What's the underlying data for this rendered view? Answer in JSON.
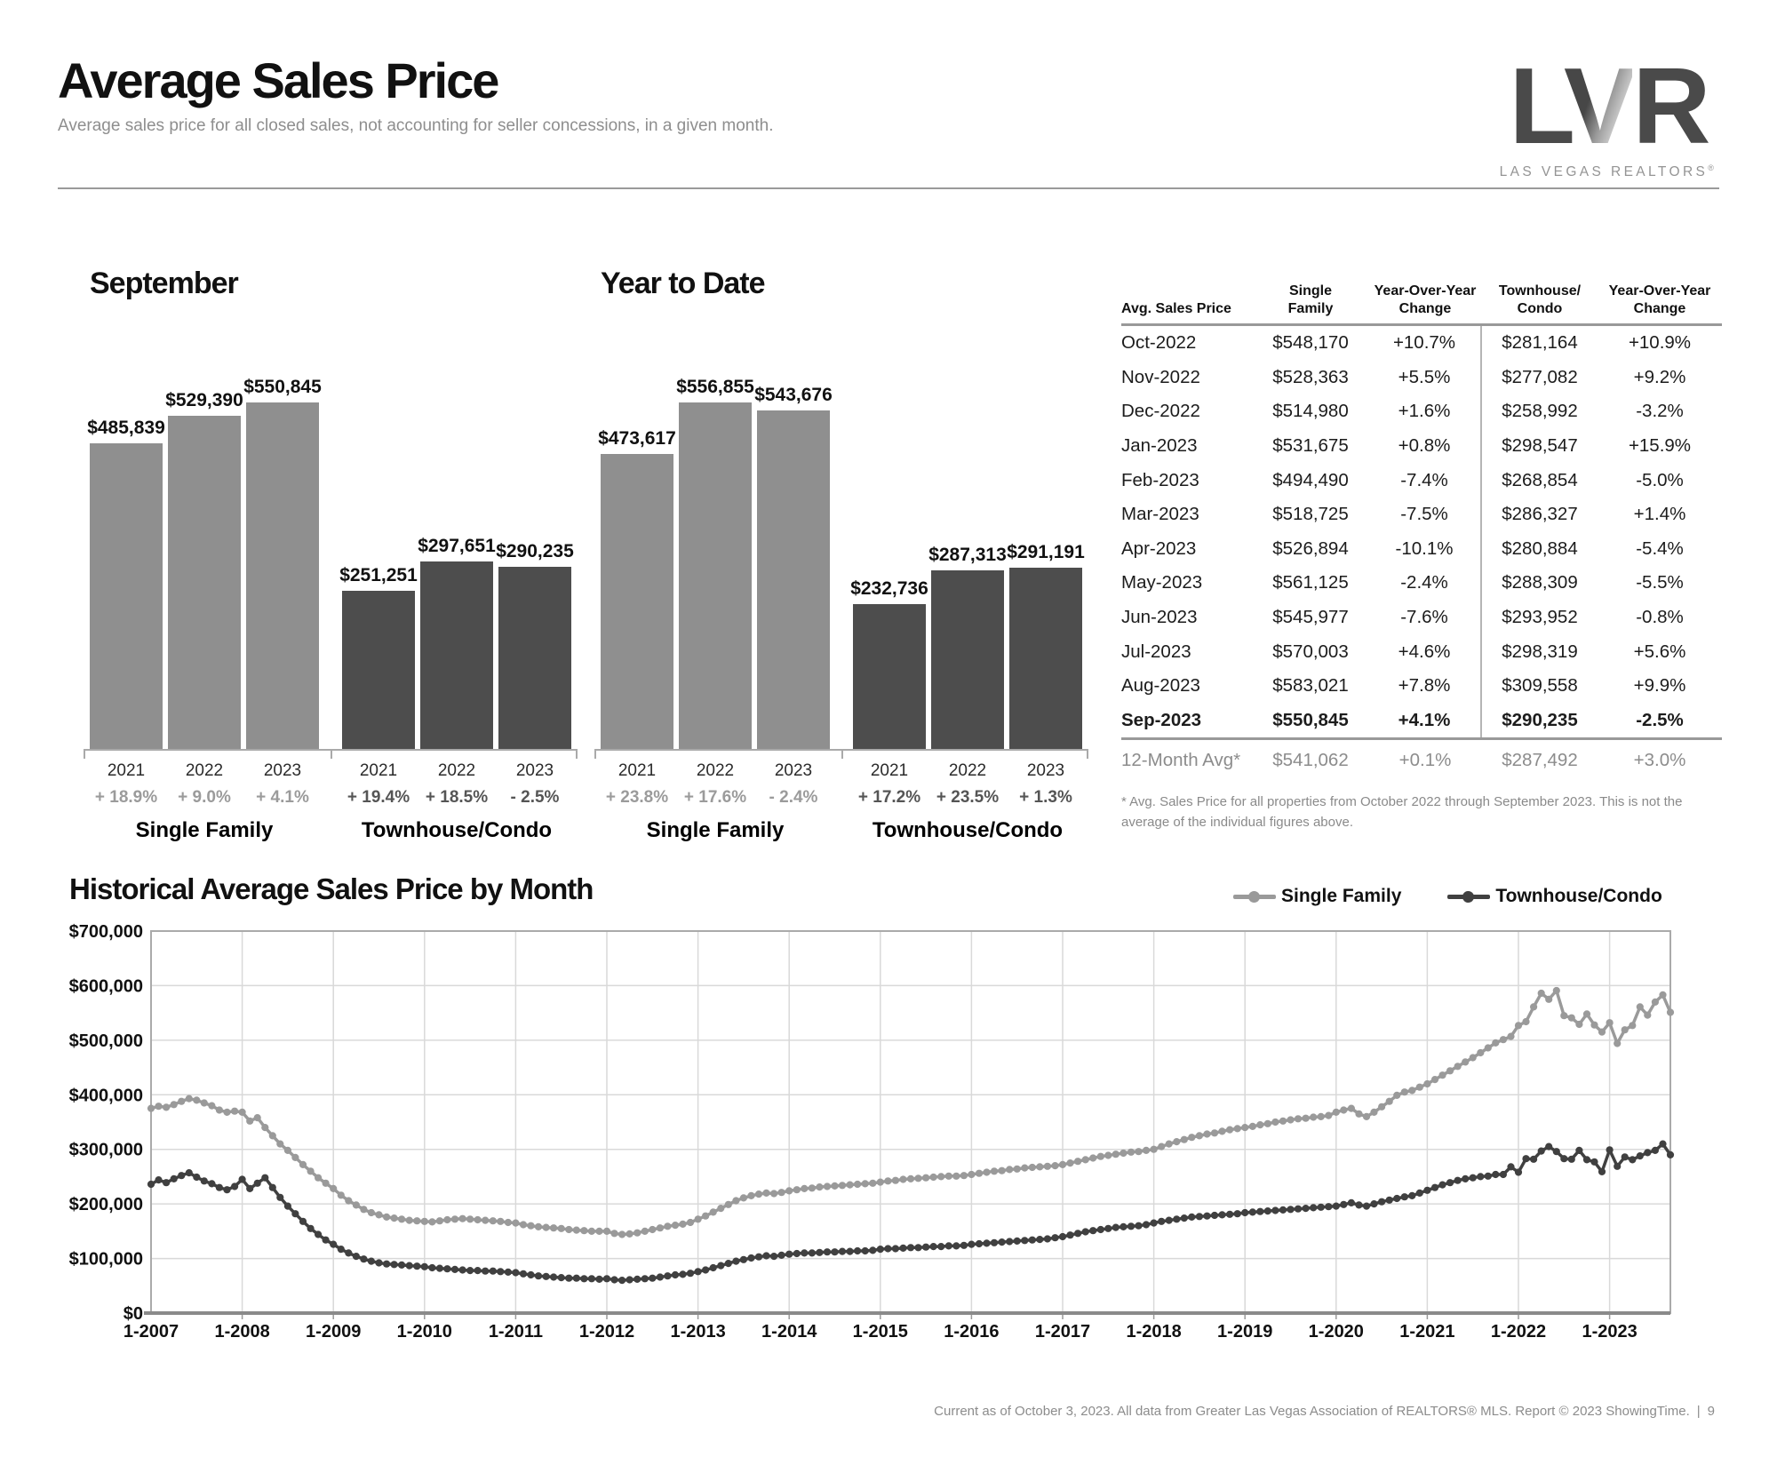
{
  "header": {
    "title": "Average Sales Price",
    "subtitle": "Average sales price for all closed sales, not accounting for seller concessions, in a given month.",
    "logo": {
      "text": "LVR",
      "subtext": "LAS VEGAS REALTORS",
      "reg": "®"
    }
  },
  "chart_data": [
    {
      "type": "bar",
      "title": "September",
      "ylim": [
        0,
        560000
      ],
      "groups": [
        {
          "label": "Single Family",
          "bars": [
            {
              "year": "2021",
              "value": 485839,
              "value_label": "$485,839",
              "change": "+ 18.9%"
            },
            {
              "year": "2022",
              "value": 529390,
              "value_label": "$529,390",
              "change": "+ 9.0%"
            },
            {
              "year": "2023",
              "value": 550845,
              "value_label": "$550,845",
              "change": "+ 4.1%"
            }
          ]
        },
        {
          "label": "Townhouse/Condo",
          "bars": [
            {
              "year": "2021",
              "value": 251251,
              "value_label": "$251,251",
              "change": "+ 19.4%"
            },
            {
              "year": "2022",
              "value": 297651,
              "value_label": "$297,651",
              "change": "+ 18.5%"
            },
            {
              "year": "2023",
              "value": 290235,
              "value_label": "$290,235",
              "change": "- 2.5%"
            }
          ]
        }
      ]
    },
    {
      "type": "bar",
      "title": "Year to Date",
      "ylim": [
        0,
        560000
      ],
      "groups": [
        {
          "label": "Single Family",
          "bars": [
            {
              "year": "2021",
              "value": 473617,
              "value_label": "$473,617",
              "change": "+ 23.8%"
            },
            {
              "year": "2022",
              "value": 556855,
              "value_label": "$556,855",
              "change": "+ 17.6%"
            },
            {
              "year": "2023",
              "value": 543676,
              "value_label": "$543,676",
              "change": "- 2.4%"
            }
          ]
        },
        {
          "label": "Townhouse/Condo",
          "bars": [
            {
              "year": "2021",
              "value": 232736,
              "value_label": "$232,736",
              "change": "+ 17.2%"
            },
            {
              "year": "2022",
              "value": 287313,
              "value_label": "$287,313",
              "change": "+ 23.5%"
            },
            {
              "year": "2023",
              "value": 291191,
              "value_label": "$291,191",
              "change": "+ 1.3%"
            }
          ]
        }
      ]
    },
    {
      "type": "line",
      "title": "Historical Average Sales Price by Month",
      "xlabel": "",
      "ylabel": "",
      "ylim": [
        0,
        700000
      ],
      "unit": "USD thousands",
      "grid": true,
      "legend_position": "top-right",
      "y_tick_labels": [
        "$0",
        "$100,000",
        "$200,000",
        "$300,000",
        "$400,000",
        "$500,000",
        "$600,000",
        "$700,000"
      ],
      "x_tick_labels": [
        "1-2007",
        "1-2008",
        "1-2009",
        "1-2010",
        "1-2011",
        "1-2012",
        "1-2013",
        "1-2014",
        "1-2015",
        "1-2016",
        "1-2017",
        "1-2018",
        "1-2019",
        "1-2020",
        "1-2021",
        "1-2022",
        "1-2023"
      ],
      "x_range_months": "Jan-2007 through Sep-2023",
      "series": [
        {
          "name": "Single Family",
          "color": "#9a9a9a",
          "values_k": [
            375,
            379,
            377,
            382,
            388,
            393,
            390,
            385,
            380,
            372,
            368,
            370,
            368,
            352,
            358,
            340,
            325,
            310,
            298,
            285,
            272,
            260,
            248,
            238,
            228,
            216,
            206,
            198,
            190,
            184,
            180,
            176,
            174,
            172,
            170,
            169,
            168,
            167,
            169,
            171,
            172,
            173,
            172,
            171,
            170,
            169,
            168,
            166,
            165,
            162,
            160,
            158,
            157,
            156,
            155,
            153,
            152,
            151,
            150,
            150,
            150,
            146,
            144,
            145,
            147,
            150,
            153,
            156,
            159,
            161,
            163,
            166,
            172,
            178,
            185,
            192,
            199,
            206,
            211,
            215,
            218,
            220,
            219,
            221,
            224,
            226,
            228,
            229,
            231,
            232,
            233,
            234,
            235,
            236,
            237,
            238,
            240,
            242,
            243,
            245,
            246,
            247,
            248,
            249,
            250,
            251,
            251,
            252,
            254,
            256,
            258,
            260,
            261,
            263,
            264,
            266,
            267,
            268,
            269,
            270,
            272,
            275,
            278,
            281,
            284,
            287,
            289,
            291,
            293,
            295,
            296,
            298,
            300,
            305,
            310,
            314,
            318,
            322,
            325,
            328,
            330,
            333,
            336,
            338,
            340,
            342,
            345,
            347,
            350,
            352,
            354,
            356,
            357,
            359,
            360,
            362,
            368,
            372,
            375,
            365,
            360,
            368,
            378,
            388,
            399,
            405,
            408,
            414,
            420,
            428,
            436,
            444,
            452,
            460,
            468,
            477,
            486,
            495,
            501,
            507,
            527,
            534,
            561,
            586,
            575,
            591,
            545,
            541,
            529,
            548,
            528,
            515,
            532,
            494,
            519,
            527,
            561,
            546,
            570,
            583,
            551
          ]
        },
        {
          "name": "Townhouse/Condo",
          "color": "#404040",
          "values_k": [
            236,
            244,
            239,
            246,
            252,
            257,
            249,
            242,
            237,
            230,
            226,
            232,
            245,
            228,
            238,
            248,
            230,
            212,
            196,
            182,
            168,
            155,
            144,
            134,
            126,
            117,
            110,
            104,
            99,
            95,
            92,
            90,
            89,
            88,
            87,
            86,
            85,
            83,
            82,
            81,
            80,
            79,
            78,
            78,
            77,
            77,
            76,
            75,
            74,
            72,
            70,
            68,
            67,
            66,
            65,
            64,
            64,
            63,
            63,
            62,
            63,
            61,
            60,
            61,
            62,
            63,
            64,
            66,
            68,
            70,
            71,
            73,
            76,
            79,
            83,
            87,
            91,
            95,
            98,
            101,
            103,
            105,
            104,
            106,
            108,
            109,
            110,
            110,
            111,
            112,
            112,
            113,
            113,
            114,
            114,
            115,
            117,
            118,
            118,
            119,
            120,
            120,
            121,
            122,
            122,
            123,
            123,
            124,
            126,
            127,
            128,
            129,
            130,
            131,
            132,
            133,
            134,
            135,
            136,
            138,
            140,
            143,
            146,
            149,
            151,
            153,
            155,
            157,
            158,
            159,
            160,
            162,
            165,
            168,
            170,
            172,
            174,
            176,
            177,
            178,
            179,
            180,
            181,
            182,
            184,
            185,
            186,
            187,
            188,
            189,
            190,
            191,
            192,
            193,
            194,
            195,
            196,
            199,
            202,
            198,
            196,
            200,
            204,
            207,
            210,
            213,
            215,
            220,
            225,
            230,
            235,
            239,
            243,
            246,
            248,
            250,
            251,
            254,
            254,
            268,
            258,
            283,
            282,
            297,
            305,
            296,
            283,
            282,
            298,
            281,
            277,
            259,
            299,
            269,
            286,
            281,
            288,
            294,
            298,
            310,
            290
          ]
        }
      ]
    }
  ],
  "table": {
    "col_headers": [
      "Avg. Sales Price",
      "Single\nFamily",
      "Year-Over-Year\nChange",
      "Townhouse/\nCondo",
      "Year-Over-Year\nChange"
    ],
    "rows": [
      [
        "Oct-2022",
        "$548,170",
        "+10.7%",
        "$281,164",
        "+10.9%"
      ],
      [
        "Nov-2022",
        "$528,363",
        "+5.5%",
        "$277,082",
        "+9.2%"
      ],
      [
        "Dec-2022",
        "$514,980",
        "+1.6%",
        "$258,992",
        "-3.2%"
      ],
      [
        "Jan-2023",
        "$531,675",
        "+0.8%",
        "$298,547",
        "+15.9%"
      ],
      [
        "Feb-2023",
        "$494,490",
        "-7.4%",
        "$268,854",
        "-5.0%"
      ],
      [
        "Mar-2023",
        "$518,725",
        "-7.5%",
        "$286,327",
        "+1.4%"
      ],
      [
        "Apr-2023",
        "$526,894",
        "-10.1%",
        "$280,884",
        "-5.4%"
      ],
      [
        "May-2023",
        "$561,125",
        "-2.4%",
        "$288,309",
        "-5.5%"
      ],
      [
        "Jun-2023",
        "$545,977",
        "-7.6%",
        "$293,952",
        "-0.8%"
      ],
      [
        "Jul-2023",
        "$570,003",
        "+4.6%",
        "$298,319",
        "+5.6%"
      ],
      [
        "Aug-2023",
        "$583,021",
        "+7.8%",
        "$309,558",
        "+9.9%"
      ],
      [
        "Sep-2023",
        "$550,845",
        "+4.1%",
        "$290,235",
        "-2.5%"
      ]
    ],
    "avg_row": [
      "12-Month Avg*",
      "$541,062",
      "+0.1%",
      "$287,492",
      "+3.0%"
    ],
    "footnote": "* Avg. Sales Price for all properties from October 2022 through September 2023. This is not the average of the individual figures above."
  },
  "hist_legend": [
    {
      "label": "Single Family",
      "color": "#9a9a9a"
    },
    {
      "label": "Townhouse/Condo",
      "color": "#404040"
    }
  ],
  "footer": {
    "text": "Current as of October 3, 2023. All data from Greater Las Vegas Association of REALTORS® MLS. Report © 2023 ShowingTime.",
    "page": "9"
  }
}
